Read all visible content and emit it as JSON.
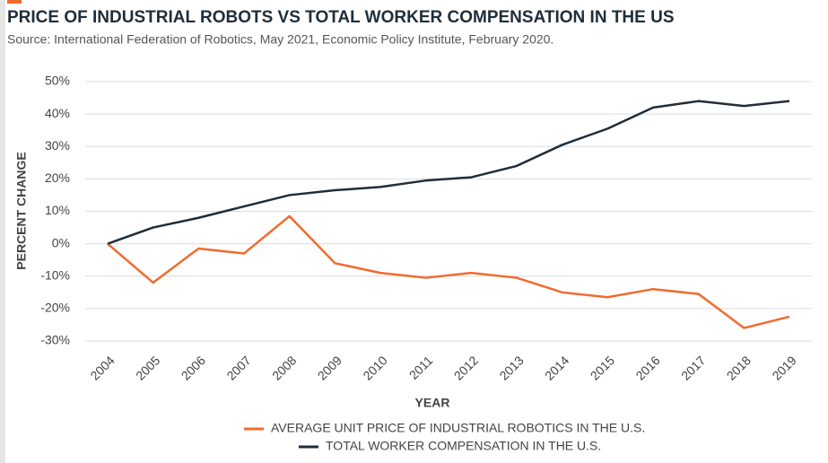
{
  "chart_data": {
    "type": "line",
    "title": "PRICE OF INDUSTRIAL ROBOTS VS TOTAL WORKER COMPENSATION IN THE US",
    "subtitle": "Source: International Federation of Robotics, May 2021, Economic Policy Institute, February 2020.",
    "x_label": "YEAR",
    "y_label": "PERCENT CHANGE",
    "categories": [
      "2004",
      "2005",
      "2006",
      "2007",
      "2008",
      "2009",
      "2010",
      "2011",
      "2012",
      "2013",
      "2014",
      "2015",
      "2016",
      "2017",
      "2018",
      "2019"
    ],
    "series": [
      {
        "name": "AVERAGE UNIT PRICE OF INDUSTRIAL ROBOTICS IN THE U.S.",
        "color": "#f26a2e",
        "values": [
          0,
          -12,
          -1.5,
          -3,
          8.5,
          -6,
          -9,
          -10.5,
          -9,
          -10.5,
          -15,
          -16.5,
          -14,
          -15.5,
          -26,
          -22.5
        ]
      },
      {
        "name": "TOTAL WORKER COMPENSATION IN THE U.S.",
        "color": "#1f2d3a",
        "values": [
          0,
          5,
          8,
          11.5,
          15,
          16.5,
          17.5,
          19.5,
          20.5,
          24,
          30.5,
          35.5,
          42,
          44,
          42.5,
          44
        ]
      }
    ],
    "ylim": [
      -30,
      50
    ],
    "yticks": [
      {
        "value": -30,
        "label": "-30%"
      },
      {
        "value": -20,
        "label": "-20%"
      },
      {
        "value": -10,
        "label": "-10%"
      },
      {
        "value": 0,
        "label": "0%"
      },
      {
        "value": 10,
        "label": "10%"
      },
      {
        "value": 20,
        "label": "20%"
      },
      {
        "value": 30,
        "label": "30%"
      },
      {
        "value": 40,
        "label": "40%"
      },
      {
        "value": 50,
        "label": "50%"
      }
    ],
    "grid": true
  }
}
